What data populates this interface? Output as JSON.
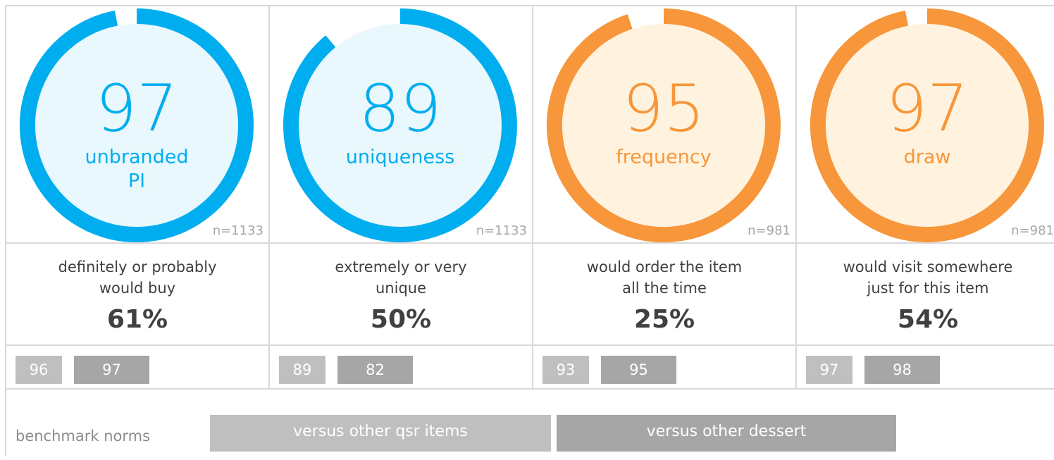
{
  "cards": [
    {
      "score": 97,
      "label": [
        "unbranded",
        "PI"
      ],
      "sample": "n=1133",
      "description": [
        "definitely or probably",
        "would buy"
      ],
      "percent": "61%",
      "norms": [
        96,
        97
      ],
      "color": "#00aeef",
      "fill": "#e9f8fd"
    },
    {
      "score": 89,
      "label": [
        "uniqueness"
      ],
      "sample": "n=1133",
      "description": [
        "extremely or very",
        "unique"
      ],
      "percent": "50%",
      "norms": [
        89,
        82
      ],
      "color": "#00aeef",
      "fill": "#e9f8fd"
    },
    {
      "score": 95,
      "label": [
        "frequency"
      ],
      "sample": "n=981",
      "description": [
        "would order the item",
        "all the time"
      ],
      "percent": "25%",
      "norms": [
        93,
        95
      ],
      "color": "#f7963a",
      "fill": "#fff3df"
    },
    {
      "score": 97,
      "label": [
        "draw"
      ],
      "sample": "n=981",
      "description": [
        "would visit somewhere",
        "just for this item"
      ],
      "percent": "54%",
      "norms": [
        97,
        98
      ],
      "color": "#f7963a",
      "fill": "#fff3df"
    }
  ],
  "legend": {
    "title": "benchmark norms",
    "items": [
      {
        "name": "versus other qsr items",
        "color": "#bfbfbf"
      },
      {
        "name": "versus other dessert",
        "color": "#a6a6a6"
      }
    ]
  }
}
